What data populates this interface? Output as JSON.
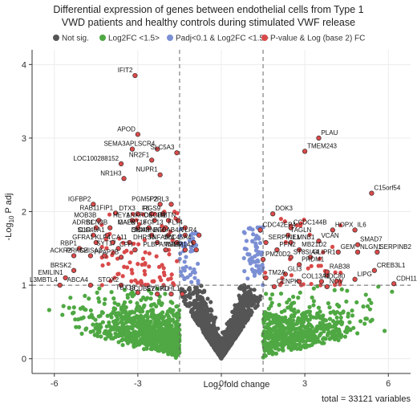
{
  "chart_data": {
    "type": "scatter",
    "title_lines": [
      "Differential expression of genes between endothelial cells from Type 1",
      "VWD patients and healthy controls during stimulated VWF release"
    ],
    "xlabel_prefix": "Log",
    "xlabel_sub": "2",
    "xlabel_suffix": " fold change",
    "ylabel_prefix": "-Log",
    "ylabel_sub": "10",
    "ylabel_suffix": " P adj",
    "xlim": [
      -6.8,
      6.8
    ],
    "ylim": [
      -0.2,
      4.2
    ],
    "x_ticks": [
      -6,
      -3,
      0,
      3,
      6
    ],
    "y_ticks": [
      0,
      1,
      2,
      3,
      4
    ],
    "thresholds": {
      "x": [
        -1.5,
        1.5
      ],
      "y": 1.0
    },
    "caption": "total = 33121 variables",
    "legend": [
      {
        "label": "Not sig.",
        "color": "#555555"
      },
      {
        "label": "Log2FC <1.5>",
        "color": "#4fa843"
      },
      {
        "label": "Padj<0.1 & Log2FC <1.5>",
        "color": "#7b8fd4"
      },
      {
        "label": "P-value & Log (base 2) FC",
        "color": "#d94a4a"
      }
    ],
    "labeled_genes": [
      {
        "name": "IFIT2",
        "x": -3.1,
        "y": 3.85
      },
      {
        "name": "APOD",
        "x": -3.0,
        "y": 3.05
      },
      {
        "name": "SEMA3A",
        "x": -3.2,
        "y": 2.85
      },
      {
        "name": "PLSCR4",
        "x": -2.3,
        "y": 2.85
      },
      {
        "name": "LOC100288152",
        "x": -3.6,
        "y": 2.65
      },
      {
        "name": "NR2F1",
        "x": -2.5,
        "y": 2.7
      },
      {
        "name": "SLC5A3",
        "x": -1.6,
        "y": 2.8
      },
      {
        "name": "NUPR1",
        "x": -2.2,
        "y": 2.5
      },
      {
        "name": "NR1H3",
        "x": -3.5,
        "y": 2.45
      },
      {
        "name": "IGFBP2",
        "x": -4.6,
        "y": 2.1
      },
      {
        "name": "PGM5P2",
        "x": -2.2,
        "y": 2.1
      },
      {
        "name": "F2RL3",
        "x": -1.8,
        "y": 2.1
      },
      {
        "name": "RAB11FIP1",
        "x": -3.8,
        "y": 1.98
      },
      {
        "name": "DTX3",
        "x": -3.0,
        "y": 1.97
      },
      {
        "name": "F8",
        "x": -2.5,
        "y": 1.97
      },
      {
        "name": "RGS9",
        "x": -2.1,
        "y": 1.97
      },
      {
        "name": "MOB3B",
        "x": -4.4,
        "y": 1.88
      },
      {
        "name": "HEY1",
        "x": -3.2,
        "y": 1.88
      },
      {
        "name": "ANKRD6",
        "x": -2.4,
        "y": 1.88
      },
      {
        "name": "CEGR1",
        "x": -1.9,
        "y": 1.88
      },
      {
        "name": "DMTN",
        "x": -1.55,
        "y": 1.88
      },
      {
        "name": "ADRB1",
        "x": -4.5,
        "y": 1.78
      },
      {
        "name": "SCN3B",
        "x": -4.0,
        "y": 1.78
      },
      {
        "name": "MAFB",
        "x": -3.0,
        "y": 1.78
      },
      {
        "name": "GALNT18",
        "x": -2.6,
        "y": 1.78
      },
      {
        "name": "FGF13",
        "x": -2.0,
        "y": 1.78
      },
      {
        "name": "FLT4",
        "x": -1.3,
        "y": 1.78
      },
      {
        "name": "C1R",
        "x": -4.6,
        "y": 1.68
      },
      {
        "name": "SLC40A1",
        "x": -4.1,
        "y": 1.68
      },
      {
        "name": "DNM3",
        "x": -2.5,
        "y": 1.68
      },
      {
        "name": "SCARNA10",
        "x": -1.9,
        "y": 1.68
      },
      {
        "name": "EFCAB4A",
        "x": -1.3,
        "y": 1.68
      },
      {
        "name": "TLR4",
        "x": -0.8,
        "y": 1.68
      },
      {
        "name": "GFRA1",
        "x": -4.5,
        "y": 1.58
      },
      {
        "name": "KLF4",
        "x": -3.9,
        "y": 1.58
      },
      {
        "name": "CA11",
        "x": -3.3,
        "y": 1.58
      },
      {
        "name": "DHRS3",
        "x": -2.3,
        "y": 1.58
      },
      {
        "name": "TNFAIP8",
        "x": -1.6,
        "y": 1.58
      },
      {
        "name": "SLC45A4",
        "x": -1.0,
        "y": 1.58
      },
      {
        "name": "RBP1",
        "x": -5.1,
        "y": 1.5
      },
      {
        "name": "SYT17",
        "x": -3.7,
        "y": 1.5
      },
      {
        "name": "CFH",
        "x": -3.1,
        "y": 1.48
      },
      {
        "name": "PLBPA",
        "x": -2.0,
        "y": 1.48
      },
      {
        "name": "MSMP",
        "x": -1.3,
        "y": 1.48
      },
      {
        "name": "TMEM143",
        "x": -0.9,
        "y": 1.48
      },
      {
        "name": "ACKR2",
        "x": -5.3,
        "y": 1.4
      },
      {
        "name": "PRKCZ",
        "x": -4.7,
        "y": 1.4
      },
      {
        "name": "SHISA2",
        "x": -4.2,
        "y": 1.4
      },
      {
        "name": "PPAP2B",
        "x": -3.6,
        "y": 1.38
      },
      {
        "name": "SERPINE1",
        "x": 1.6,
        "y": 1.58
      },
      {
        "name": "CDC42EP4",
        "x": 1.4,
        "y": 1.75
      },
      {
        "name": "DOK3",
        "x": 1.85,
        "y": 1.97
      },
      {
        "name": "CCDC144B",
        "x": 2.5,
        "y": 1.78
      },
      {
        "name": "TAGLN",
        "x": 2.4,
        "y": 1.68
      },
      {
        "name": "LMNB1",
        "x": 2.5,
        "y": 1.58
      },
      {
        "name": "PFN2",
        "x": 2.0,
        "y": 1.48
      },
      {
        "name": "MB21D2",
        "x": 2.8,
        "y": 1.48
      },
      {
        "name": "PM20D2",
        "x": 1.5,
        "y": 1.35
      },
      {
        "name": "ST8SIA4",
        "x": 2.5,
        "y": 1.38
      },
      {
        "name": "GLIPR1",
        "x": 3.2,
        "y": 1.38
      },
      {
        "name": "PRDM1",
        "x": 2.8,
        "y": 1.28
      },
      {
        "name": "GLI3",
        "x": 2.3,
        "y": 1.15
      },
      {
        "name": "TM2A",
        "x": 1.6,
        "y": 1.1
      },
      {
        "name": "COL13A1",
        "x": 2.8,
        "y": 1.05
      },
      {
        "name": "CENPK",
        "x": 1.9,
        "y": 0.98
      },
      {
        "name": "PLAU",
        "x": 3.5,
        "y": 3.0
      },
      {
        "name": "TMEM243",
        "x": 3.0,
        "y": 2.82
      },
      {
        "name": "C15orf54",
        "x": 5.4,
        "y": 2.25
      },
      {
        "name": "HOPX",
        "x": 4.0,
        "y": 1.75
      },
      {
        "name": "IL6",
        "x": 4.8,
        "y": 1.75
      },
      {
        "name": "VCAN",
        "x": 3.5,
        "y": 1.6
      },
      {
        "name": "SMAD7",
        "x": 4.9,
        "y": 1.55
      },
      {
        "name": "GEM",
        "x": 4.2,
        "y": 1.45
      },
      {
        "name": "NLGN1",
        "x": 4.9,
        "y": 1.45
      },
      {
        "name": "SERPINB2",
        "x": 5.6,
        "y": 1.45
      },
      {
        "name": "CREB3L1",
        "x": 5.5,
        "y": 1.2
      },
      {
        "name": "RAB38",
        "x": 3.8,
        "y": 1.18
      },
      {
        "name": "NDC80",
        "x": 3.6,
        "y": 1.05
      },
      {
        "name": "LIPG",
        "x": 4.8,
        "y": 1.08
      },
      {
        "name": "NOV",
        "x": 3.8,
        "y": 0.98
      },
      {
        "name": "CDH11",
        "x": 6.2,
        "y": 1.02
      },
      {
        "name": "BRSK2",
        "x": -5.3,
        "y": 1.2
      },
      {
        "name": "EMILIN1",
        "x": -5.6,
        "y": 1.1
      },
      {
        "name": "L3MBTL4",
        "x": -5.8,
        "y": 1.0
      },
      {
        "name": "ABCA4",
        "x": -4.7,
        "y": 1.0
      },
      {
        "name": "STOX2",
        "x": -3.6,
        "y": 1.0
      },
      {
        "name": "TBX18",
        "x": -3.0,
        "y": 0.9
      },
      {
        "name": "SCUBE2",
        "x": -2.3,
        "y": 0.88
      },
      {
        "name": "SYNPO",
        "x": -1.8,
        "y": 0.88
      },
      {
        "name": "KLHL1",
        "x": -1.4,
        "y": 0.88
      }
    ]
  }
}
